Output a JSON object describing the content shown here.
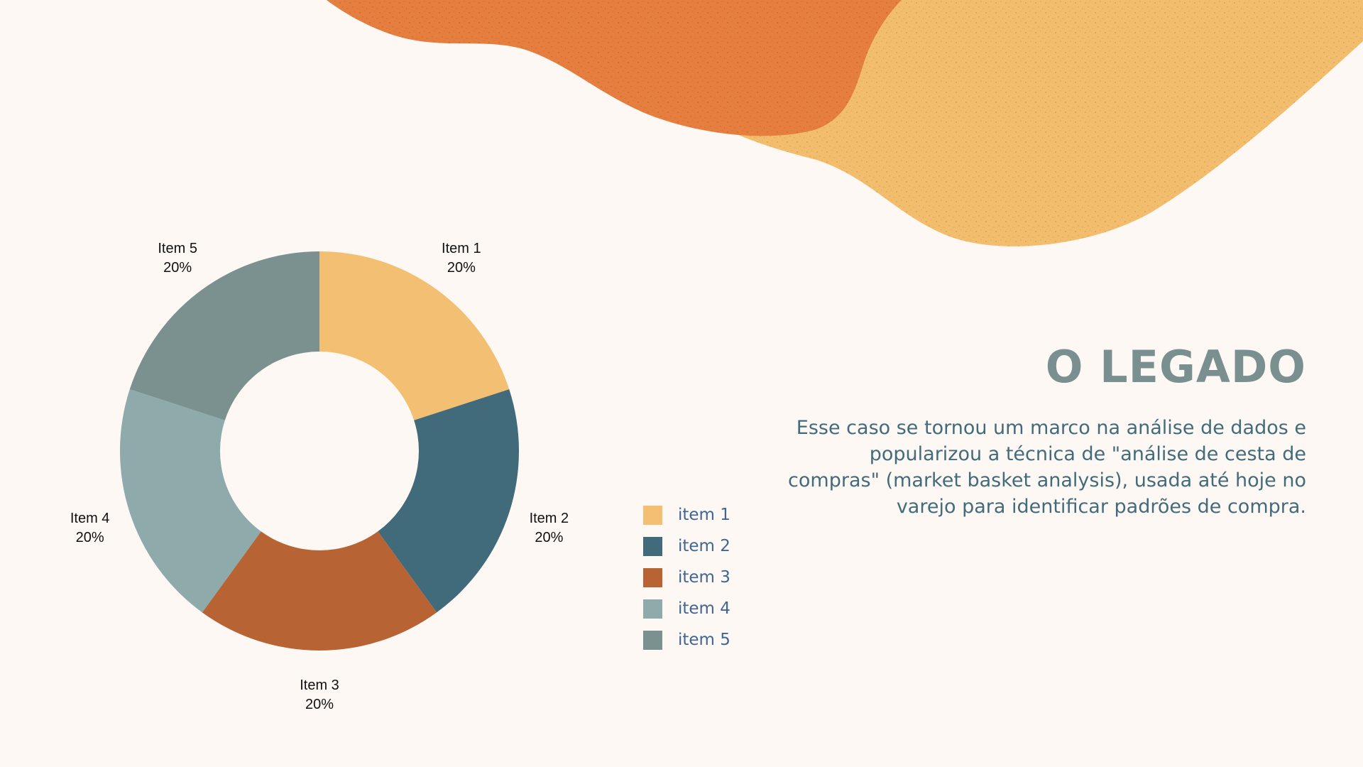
{
  "slide": {
    "title": "O LEGADO",
    "body": "Esse caso se tornou um marco na análise de dados e popularizou a técnica de \"análise de cesta de compras\" (market basket analysis), usada até hoje no varejo para identificar padrões de compra."
  },
  "colors": {
    "background": "#fdf8f3",
    "blob_orange": "#e57e3e",
    "blob_yellow": "#f3bd6e",
    "title": "#7a9090",
    "body": "#426b7b",
    "legend_text": "#41668f"
  },
  "chart_data": {
    "type": "pie",
    "variant": "donut",
    "title": "",
    "categories": [
      "Item 1",
      "Item 2",
      "Item 3",
      "Item 4",
      "Item 5"
    ],
    "values": [
      20,
      20,
      20,
      20,
      20
    ],
    "percent_labels": [
      "20%",
      "20%",
      "20%",
      "20%",
      "20%"
    ],
    "colors": [
      "#f3bf72",
      "#416b7a",
      "#b76334",
      "#8eaaab",
      "#7a9190"
    ],
    "legend": {
      "position": "right",
      "entries": [
        "item 1",
        "item 2",
        "item 3",
        "item 4",
        "item 5"
      ]
    }
  }
}
